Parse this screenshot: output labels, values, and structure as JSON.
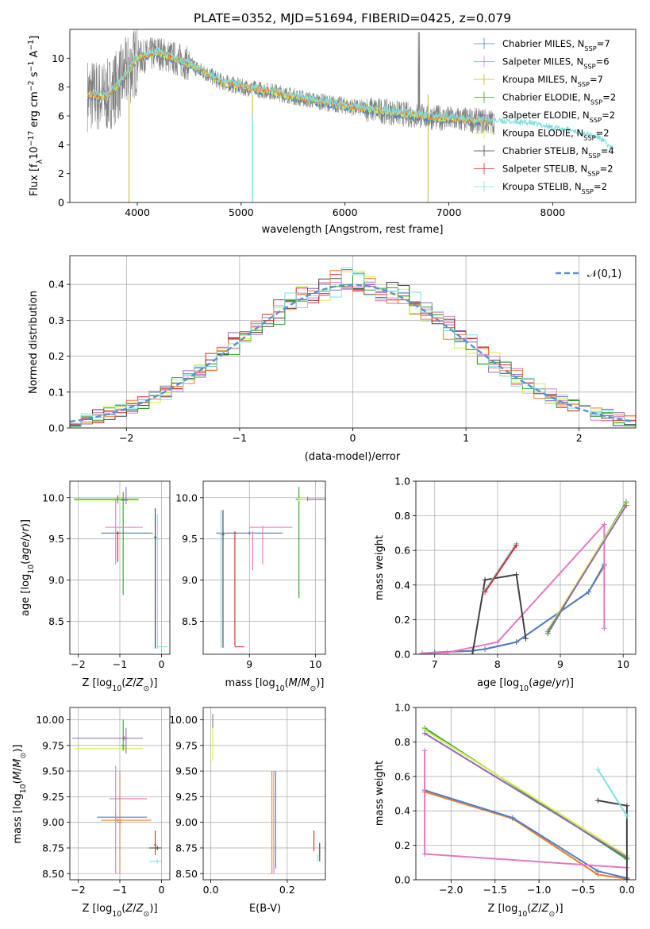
{
  "figure": {
    "title": "PLATE=0352, MJD=51694, FIBERID=0425, z=0.079"
  },
  "colors": {
    "chabrier_miles": "#4c80c8",
    "salpeter_miles": "#e377c2",
    "kroupa_miles": "#bcbd22",
    "chabrier_elodie": "#2ca02c",
    "salpeter_elodie": "#9467bd",
    "kroupa_elodie": "#d4f04a",
    "chabrier_stelib": "#404040",
    "salpeter_stelib": "#d62728",
    "kroupa_stelib": "#7fdfe0",
    "orange": "#f07c2c",
    "data": "#808080",
    "gaussian": "#5b8fd6"
  },
  "chart_data": [
    {
      "id": "spectrum",
      "type": "line",
      "xlabel": "wavelength [Angstrom, rest frame]",
      "ylabel": "Flux [f_λ 10⁻¹⁷ erg cm⁻² s⁻¹ A⁻¹]",
      "xlim": [
        3350,
        8800
      ],
      "ylim": [
        0,
        12
      ],
      "xticks": [
        4000,
        5000,
        6000,
        7000,
        8000
      ],
      "yticks": [
        0,
        2,
        4,
        6,
        8,
        10
      ],
      "grid": false,
      "legend": "top-right",
      "series": [
        {
          "name": "Chabrier MILES, N_SSP=7",
          "ssp": "N_SSP=7"
        },
        {
          "name": "Salpeter MILES, N_SSP=6",
          "ssp": "N_SSP=6"
        },
        {
          "name": "Kroupa MILES, N_SSP=7",
          "ssp": "N_SSP=7"
        },
        {
          "name": "Chabrier ELODIE, N_SSP=2",
          "ssp": "N_SSP=2"
        },
        {
          "name": "Salpeter ELODIE, N_SSP=2",
          "ssp": "N_SSP=2"
        },
        {
          "name": "Kroupa ELODIE, N_SSP=2",
          "ssp": "N_SSP=2"
        },
        {
          "name": "Chabrier STELIB, N_SSP=4",
          "ssp": "N_SSP=4"
        },
        {
          "name": "Salpeter STELIB, N_SSP=2",
          "ssp": "N_SSP=2"
        },
        {
          "name": "Kroupa STELIB, N_SSP=2",
          "ssp": "N_SSP=2"
        }
      ],
      "trend": {
        "x": [
          3520,
          3700,
          3850,
          4000,
          4200,
          4500,
          4800,
          5000,
          5300,
          5600,
          6000,
          6300,
          6600,
          7000,
          7400
        ],
        "y": [
          7.5,
          7.3,
          8.5,
          10.0,
          10.4,
          9.6,
          8.4,
          8.0,
          7.7,
          7.2,
          6.7,
          6.4,
          6.1,
          5.8,
          5.6
        ]
      },
      "cyan_extension": {
        "x": [
          7400,
          7600,
          7800,
          8000,
          8200,
          8450,
          8580
        ],
        "y": [
          5.7,
          5.6,
          5.5,
          5.2,
          5.0,
          4.5,
          3.7
        ]
      }
    },
    {
      "id": "residuals",
      "type": "line",
      "xlabel": "(data-model)/error",
      "ylabel": "Normed distribution",
      "xlim": [
        -2.5,
        2.5
      ],
      "ylim": [
        0,
        0.48
      ],
      "xticks": [
        -2,
        -1,
        0,
        1,
        2
      ],
      "yticks": [
        0.0,
        0.1,
        0.2,
        0.3,
        0.4
      ],
      "grid": true,
      "legend": "top-right",
      "gaussian_label": "N(0,1)"
    },
    {
      "id": "age-vs-Z",
      "type": "scatter",
      "xlabel": "Z [log10(Z/Z⊙)]",
      "ylabel": "age  [log10(age/yr)]",
      "xlim": [
        -2.2,
        0.2
      ],
      "ylim": [
        8.1,
        10.2
      ],
      "xticks": [
        -2,
        -1,
        0
      ],
      "yticks": [
        8.5,
        9.0,
        9.5,
        10.0
      ],
      "grid": true
    },
    {
      "id": "age-vs-mass",
      "type": "scatter",
      "xlabel": "mass [log10(M/M⊙)]",
      "xlim": [
        8.3,
        10.15
      ],
      "ylim": [
        8.1,
        10.2
      ],
      "xticks": [
        9,
        10
      ],
      "yticks": [
        8.5,
        9.0,
        9.5,
        10.0
      ],
      "grid": true
    },
    {
      "id": "massweight-vs-age",
      "type": "line",
      "xlabel": "age  [log10(age/yr)]",
      "ylabel": "mass weight",
      "xlim": [
        6.7,
        10.2
      ],
      "ylim": [
        0,
        1.0
      ],
      "xticks": [
        7,
        8,
        9,
        10
      ],
      "yticks": [
        0.0,
        0.2,
        0.4,
        0.6,
        0.8,
        1.0
      ],
      "grid": true,
      "series": [
        {
          "color": "orange",
          "x": [
            6.8,
            7.0,
            7.6,
            7.8,
            8.3,
            9.45,
            9.7
          ],
          "y": [
            0.005,
            0.01,
            0.02,
            0.03,
            0.07,
            0.36,
            0.51
          ]
        },
        {
          "color": "chabrier_miles",
          "x": [
            6.8,
            7.0,
            7.6,
            7.8,
            8.3,
            9.45,
            9.7
          ],
          "y": [
            0.005,
            0.01,
            0.02,
            0.03,
            0.07,
            0.36,
            0.52
          ]
        },
        {
          "color": "salpeter_miles",
          "x": [
            6.8,
            7.2,
            8.0,
            9.7,
            9.7
          ],
          "y": [
            0.005,
            0.01,
            0.07,
            0.75,
            0.15
          ]
        },
        {
          "color": "chabrier_elodie",
          "x": [
            8.8,
            10.05
          ],
          "y": [
            0.12,
            0.88
          ]
        },
        {
          "color": "kroupa_elodie",
          "x": [
            8.8,
            10.05
          ],
          "y": [
            0.14,
            0.87
          ]
        },
        {
          "color": "salpeter_elodie",
          "x": [
            8.8,
            10.05
          ],
          "y": [
            0.13,
            0.86
          ]
        },
        {
          "color": "chabrier_stelib",
          "x": [
            7.6,
            7.8,
            8.3,
            8.45
          ],
          "y": [
            0.0,
            0.43,
            0.46,
            0.09
          ]
        },
        {
          "color": "kroupa_stelib",
          "x": [
            7.8,
            8.3
          ],
          "y": [
            0.37,
            0.64
          ]
        },
        {
          "color": "salpeter_stelib",
          "x": [
            7.8,
            8.3
          ],
          "y": [
            0.36,
            0.63
          ]
        }
      ]
    },
    {
      "id": "mass-vs-Z",
      "type": "scatter",
      "xlabel": "Z [log10(Z/Z⊙)]",
      "ylabel": "mass [log10(M/M⊙)]",
      "xlim": [
        -2.2,
        0.2
      ],
      "ylim": [
        8.44,
        10.12
      ],
      "xticks": [
        -2,
        -1,
        0
      ],
      "yticks": [
        8.5,
        8.75,
        9.0,
        9.25,
        9.5,
        9.75,
        10.0
      ],
      "grid": true
    },
    {
      "id": "mass-vs-ebv",
      "type": "scatter",
      "xlabel": "E(B-V)",
      "xlim": [
        -0.02,
        0.3
      ],
      "ylim": [
        8.44,
        10.12
      ],
      "xticks": [
        0.0,
        0.2
      ],
      "yticks": [
        8.5,
        8.75,
        9.0,
        9.25,
        9.5,
        9.75,
        10.0
      ],
      "grid": true
    },
    {
      "id": "massweight-vs-Z",
      "type": "line",
      "xlabel": "Z [log10(Z/Z⊙)]",
      "ylabel": "mass weight",
      "xlim": [
        -2.4,
        0.1
      ],
      "ylim": [
        0,
        1.0
      ],
      "xticks": [
        -2.0,
        -1.5,
        -1.0,
        -0.5,
        0.0
      ],
      "yticks": [
        0.0,
        0.2,
        0.4,
        0.6,
        0.8,
        1.0
      ],
      "grid": true,
      "series": [
        {
          "color": "orange",
          "x": [
            -2.3,
            -1.3,
            -0.33,
            0.0
          ],
          "y": [
            0.51,
            0.355,
            0.03,
            0.005
          ]
        },
        {
          "color": "chabrier_miles",
          "x": [
            -2.3,
            -1.3,
            -0.33,
            0.0
          ],
          "y": [
            0.52,
            0.36,
            0.05,
            0.01
          ]
        },
        {
          "color": "salpeter_miles",
          "x": [
            -2.3,
            -2.3,
            -2.3,
            0.0
          ],
          "y": [
            0.75,
            0.15,
            0.15,
            0.07
          ]
        },
        {
          "color": "chabrier_elodie",
          "x": [
            -2.3,
            0.0
          ],
          "y": [
            0.88,
            0.12
          ]
        },
        {
          "color": "kroupa_elodie",
          "x": [
            -2.3,
            0.0
          ],
          "y": [
            0.87,
            0.14
          ]
        },
        {
          "color": "salpeter_elodie",
          "x": [
            -2.3,
            0.0
          ],
          "y": [
            0.85,
            0.13
          ]
        },
        {
          "color": "chabrier_stelib",
          "x": [
            -0.33,
            0.0,
            0.0
          ],
          "y": [
            0.46,
            0.43,
            0.0
          ]
        },
        {
          "color": "kroupa_stelib",
          "x": [
            -0.33,
            0.0
          ],
          "y": [
            0.64,
            0.37
          ]
        }
      ]
    }
  ]
}
